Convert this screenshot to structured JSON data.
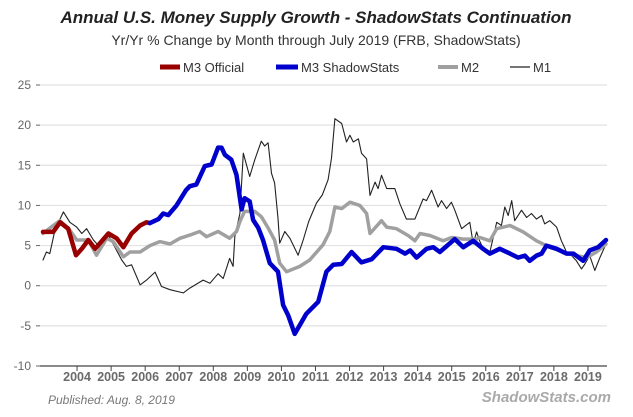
{
  "chart_data": {
    "type": "line",
    "title": "Annual U.S. Money Supply Growth - ShadowStats Continuation",
    "subtitle": "Yr/Yr % Change by Month through July 2019  (FRB, ShadowStats)",
    "xlabel": "",
    "ylabel": "",
    "ylim": [
      -10,
      25
    ],
    "xlim": [
      2003.0,
      2019.53
    ],
    "yticks": [
      "-10",
      "-5",
      "0",
      "5",
      "10",
      "15",
      "20",
      "25"
    ],
    "xticks": [
      "2004",
      "2005",
      "2006",
      "2007",
      "2008",
      "2009",
      "2010",
      "2011",
      "2012",
      "2013",
      "2014",
      "2015",
      "2016",
      "2017",
      "2018",
      "2019"
    ],
    "grid": true,
    "legend_position": "top",
    "series": [
      {
        "name": "M3 Official",
        "color": "#990000",
        "x": [
          2003.0,
          2003.3,
          2003.5,
          2003.74,
          2003.97,
          2004.14,
          2004.33,
          2004.53,
          2004.92,
          2005.16,
          2005.36,
          2005.6,
          2005.85,
          2006.04,
          2006.14
        ],
        "y": [
          6.7,
          6.7,
          7.9,
          7.1,
          3.8,
          4.6,
          5.7,
          4.6,
          6.5,
          5.9,
          4.8,
          6.5,
          7.5,
          7.9,
          7.8
        ]
      },
      {
        "name": "M3 ShadowStats",
        "color": "#0000cc",
        "x": [
          2006.14,
          2006.39,
          2006.53,
          2006.68,
          2006.92,
          2007.2,
          2007.31,
          2007.5,
          2007.75,
          2007.95,
          2008.14,
          2008.24,
          2008.34,
          2008.53,
          2008.68,
          2008.83,
          2008.92,
          2009.07,
          2009.17,
          2009.32,
          2009.46,
          2009.66,
          2009.9,
          2010.05,
          2010.2,
          2010.39,
          2010.54,
          2010.73,
          2011.08,
          2011.32,
          2011.52,
          2011.77,
          2012.06,
          2012.35,
          2012.65,
          2012.99,
          2013.38,
          2013.63,
          2013.78,
          2013.97,
          2014.26,
          2014.46,
          2014.65,
          2015.09,
          2015.34,
          2015.63,
          2015.92,
          2016.12,
          2016.41,
          2016.71,
          2016.95,
          2017.15,
          2017.29,
          2017.49,
          2017.64,
          2017.78,
          2018.08,
          2018.37,
          2018.57,
          2018.86,
          2019.05,
          2019.3,
          2019.53
        ],
        "y": [
          7.8,
          8.3,
          9.0,
          8.8,
          10.0,
          11.9,
          12.4,
          12.6,
          14.9,
          15.1,
          17.2,
          17.2,
          16.3,
          15.7,
          13.8,
          9.5,
          10.9,
          10.5,
          8.2,
          7.2,
          5.7,
          2.8,
          1.75,
          -2.4,
          -3.7,
          -6.0,
          -4.9,
          -3.5,
          -2.0,
          1.75,
          2.6,
          2.7,
          4.2,
          2.9,
          3.3,
          4.8,
          4.6,
          4.0,
          4.4,
          3.5,
          4.6,
          4.8,
          4.2,
          5.8,
          4.8,
          5.6,
          4.6,
          4.0,
          4.6,
          4.0,
          3.5,
          3.75,
          3.1,
          3.75,
          4.0,
          5.0,
          4.6,
          4.0,
          4.0,
          3.1,
          4.4,
          4.8,
          5.7
        ]
      },
      {
        "name": "M2",
        "color": "#a0a0a0",
        "x": [
          2003.0,
          2003.3,
          2003.5,
          2003.79,
          2003.99,
          2004.33,
          2004.57,
          2004.87,
          2005.06,
          2005.36,
          2005.55,
          2005.85,
          2006.14,
          2006.43,
          2006.73,
          2007.02,
          2007.31,
          2007.6,
          2007.8,
          2008.14,
          2008.48,
          2008.68,
          2008.78,
          2008.92,
          2009.22,
          2009.41,
          2009.61,
          2009.8,
          2009.95,
          2010.15,
          2010.54,
          2010.83,
          2011.22,
          2011.42,
          2011.57,
          2011.77,
          2012.01,
          2012.3,
          2012.5,
          2012.6,
          2012.94,
          2013.09,
          2013.38,
          2013.72,
          2013.92,
          2014.07,
          2014.36,
          2014.75,
          2015.0,
          2015.34,
          2015.73,
          2015.83,
          2016.12,
          2016.32,
          2016.71,
          2017.1,
          2017.49,
          2017.88,
          2018.27,
          2018.66,
          2018.96,
          2019.25,
          2019.53
        ],
        "y": [
          6.5,
          7.5,
          8.1,
          6.9,
          5.7,
          5.7,
          3.8,
          5.9,
          5.5,
          3.6,
          4.2,
          4.2,
          5.0,
          5.5,
          5.2,
          5.9,
          6.3,
          6.75,
          6.1,
          6.75,
          5.9,
          6.75,
          8.0,
          9.25,
          9.25,
          8.6,
          7.2,
          5.7,
          2.8,
          1.75,
          2.4,
          3.2,
          5.1,
          6.75,
          9.8,
          9.6,
          10.4,
          10.0,
          9.0,
          6.5,
          8.1,
          7.3,
          7.1,
          6.25,
          5.6,
          6.5,
          6.25,
          5.6,
          6.0,
          5.8,
          5.8,
          6.0,
          5.6,
          7.1,
          7.5,
          6.7,
          5.6,
          4.8,
          4.2,
          3.75,
          3.5,
          4.2,
          5.2
        ]
      },
      {
        "name": "M1",
        "color": "#222222",
        "x": [
          2003.0,
          2003.1,
          2003.2,
          2003.35,
          2003.6,
          2003.79,
          2003.99,
          2004.14,
          2004.28,
          2004.48,
          2004.67,
          2004.92,
          2005.11,
          2005.31,
          2005.45,
          2005.6,
          2005.85,
          2006.04,
          2006.29,
          2006.48,
          2006.73,
          2007.12,
          2007.31,
          2007.7,
          2007.9,
          2008.14,
          2008.29,
          2008.48,
          2008.58,
          2008.63,
          2008.78,
          2008.88,
          2009.07,
          2009.22,
          2009.41,
          2009.51,
          2009.61,
          2009.71,
          2009.8,
          2009.9,
          2009.95,
          2010.1,
          2010.25,
          2010.49,
          2010.64,
          2010.8,
          2011.03,
          2011.2,
          2011.37,
          2011.47,
          2011.57,
          2011.77,
          2011.91,
          2012.01,
          2012.11,
          2012.26,
          2012.35,
          2012.5,
          2012.6,
          2012.75,
          2012.84,
          2012.94,
          2013.09,
          2013.33,
          2013.48,
          2013.67,
          2013.92,
          2014.16,
          2014.26,
          2014.41,
          2014.6,
          2014.7,
          2014.85,
          2014.99,
          2015.09,
          2015.29,
          2015.53,
          2015.63,
          2015.73,
          2015.82,
          2015.97,
          2016.12,
          2016.32,
          2016.46,
          2016.56,
          2016.66,
          2016.76,
          2016.85,
          2017.05,
          2017.2,
          2017.34,
          2017.49,
          2017.64,
          2017.73,
          2017.88,
          2018.08,
          2018.22,
          2018.37,
          2018.52,
          2018.66,
          2018.81,
          2018.91,
          2019.05,
          2019.2,
          2019.35,
          2019.53
        ],
        "y": [
          3.2,
          4.2,
          4.0,
          6.9,
          9.2,
          7.9,
          7.3,
          6.5,
          7.1,
          5.7,
          4.8,
          6.3,
          4.8,
          3.2,
          2.4,
          2.6,
          0.1,
          0.7,
          1.7,
          -0.1,
          -0.5,
          -0.9,
          -0.3,
          0.7,
          0.3,
          1.5,
          0.9,
          3.4,
          2.4,
          6.1,
          9.0,
          16.5,
          13.6,
          15.7,
          18.0,
          17.4,
          17.8,
          14.0,
          12.8,
          8.4,
          5.3,
          6.75,
          5.9,
          3.8,
          5.7,
          8.0,
          10.3,
          11.3,
          13.2,
          15.9,
          20.8,
          20.2,
          17.9,
          18.75,
          17.9,
          18.3,
          16.5,
          15.8,
          11.25,
          12.9,
          12.1,
          13.75,
          12.1,
          12.1,
          10.2,
          8.3,
          8.3,
          10.8,
          10.6,
          11.9,
          9.8,
          10.6,
          9.6,
          10.4,
          9.4,
          7.1,
          7.9,
          5.2,
          6.7,
          5.6,
          4.2,
          4.2,
          7.9,
          7.5,
          9.8,
          8.75,
          10.6,
          8.1,
          9.4,
          8.5,
          9.0,
          8.3,
          8.75,
          7.7,
          8.1,
          7.3,
          5.6,
          4.2,
          3.75,
          3.1,
          2.1,
          2.7,
          3.75,
          1.9,
          3.5,
          5.2
        ]
      }
    ],
    "footer_left": "Published: Aug. 8, 2019",
    "footer_right": "ShadowStats.com"
  }
}
